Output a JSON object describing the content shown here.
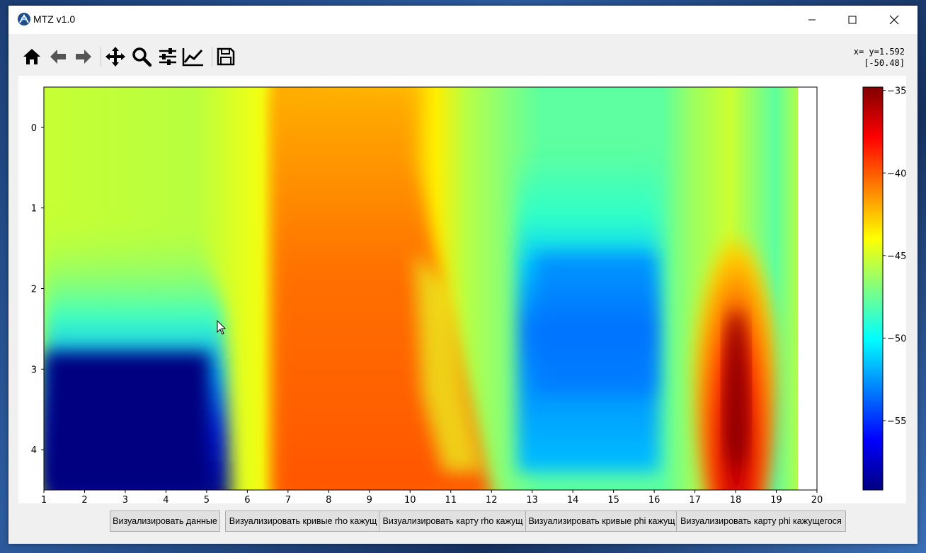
{
  "window": {
    "title": "MTZ v1.0"
  },
  "toolbar": {
    "items": [
      {
        "name": "home-icon"
      },
      {
        "name": "back-arrow-icon"
      },
      {
        "name": "forward-arrow-icon"
      },
      {
        "name": "pan-icon"
      },
      {
        "name": "zoom-icon"
      },
      {
        "name": "subplots-config-icon"
      },
      {
        "name": "edit-axis-icon"
      },
      {
        "name": "save-icon"
      }
    ]
  },
  "coords": {
    "line1": "x= y=1.592",
    "line2": "[-50.48]"
  },
  "chart_data": {
    "type": "heatmap",
    "colormap": "jet",
    "x_ticks": [
      "1",
      "2",
      "3",
      "4",
      "5",
      "6",
      "7",
      "8",
      "9",
      "10",
      "11",
      "12",
      "13",
      "14",
      "15",
      "16",
      "17",
      "18",
      "19",
      "20"
    ],
    "y_ticks": [
      "0",
      "1",
      "2",
      "3",
      "4"
    ],
    "xlim": [
      1,
      20
    ],
    "ylim_inverted": [
      4.5,
      -0.5
    ],
    "colorbar": {
      "ticks": [
        "−35",
        "−40",
        "−45",
        "−50",
        "−55"
      ],
      "range": [
        -59.2,
        -34.8
      ]
    }
  },
  "buttons": [
    "Визуализировать данные",
    "Визуализировать кривые rho кажущ",
    "Визуализировать карту rho кажущ",
    "Визуализировать кривые phi кажущ",
    "Визуализировать карту phi кажущегося"
  ]
}
